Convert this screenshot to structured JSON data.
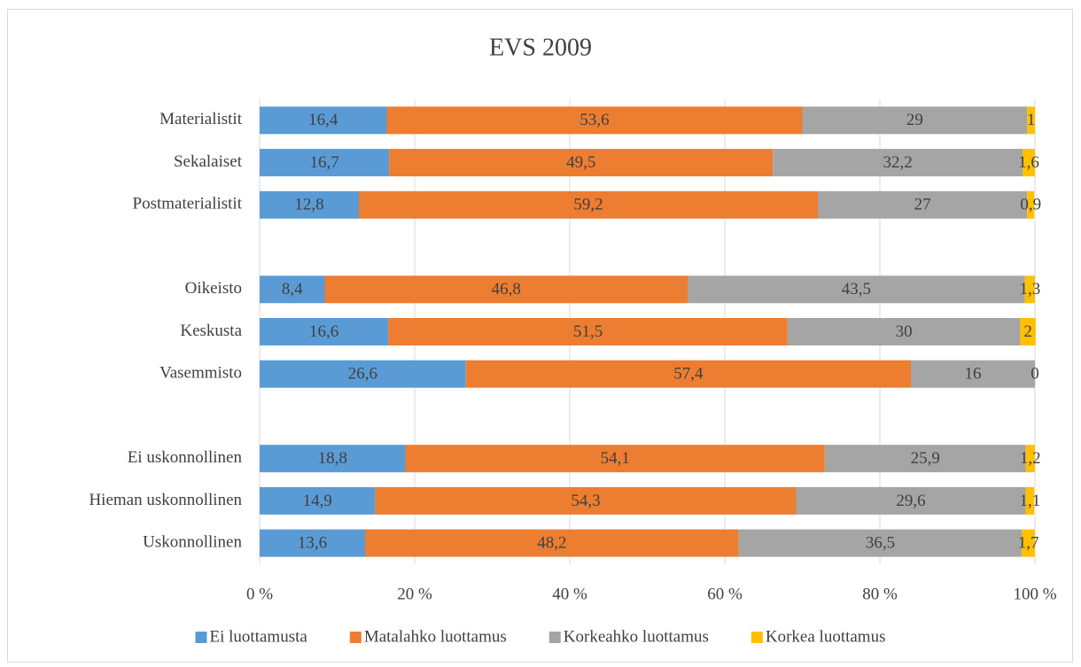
{
  "chart_data": {
    "type": "stacked-bar-horizontal",
    "title": "EVS 2009",
    "categories": [
      "Materialistit",
      "Sekalaiset",
      "Postmaterialistit",
      null,
      "Oikeisto",
      "Keskusta",
      "Vasemmisto",
      null,
      "Ei uskonnollinen",
      "Hieman uskonnollinen",
      "Uskonnollinen"
    ],
    "series": [
      {
        "name": "Ei luottamusta",
        "color": "#5b9bd5",
        "values": [
          16.4,
          16.7,
          12.8,
          null,
          8.4,
          16.6,
          26.6,
          null,
          18.8,
          14.9,
          13.6
        ],
        "value_labels": [
          "16,4",
          "16,7",
          "12,8",
          null,
          "8,4",
          "16,6",
          "26,6",
          null,
          "18,8",
          "14,9",
          "13,6"
        ]
      },
      {
        "name": "Matalahko luottamus",
        "color": "#ed7d31",
        "values": [
          53.6,
          49.5,
          59.2,
          null,
          46.8,
          51.5,
          57.4,
          null,
          54.1,
          54.3,
          48.2
        ],
        "value_labels": [
          "53,6",
          "49,5",
          "59,2",
          null,
          "46,8",
          "51,5",
          "57,4",
          null,
          "54,1",
          "54,3",
          "48,2"
        ]
      },
      {
        "name": "Korkeahko luottamus",
        "color": "#a5a5a5",
        "values": [
          29,
          32.2,
          27,
          null,
          43.5,
          30,
          16,
          null,
          25.9,
          29.6,
          36.5
        ],
        "value_labels": [
          "29",
          "32,2",
          "27",
          null,
          "43,5",
          "30",
          "16",
          null,
          "25,9",
          "29,6",
          "36,5"
        ]
      },
      {
        "name": "Korkea luottamus",
        "color": "#ffc000",
        "values": [
          1,
          1.6,
          0.9,
          null,
          1.3,
          2,
          0,
          null,
          1.2,
          1.1,
          1.7
        ],
        "value_labels": [
          "1",
          "1,6",
          "0,9",
          null,
          "1,3",
          "2",
          "0",
          null,
          "1,2",
          "1,1",
          "1,7"
        ]
      }
    ],
    "xlim": [
      0,
      100
    ],
    "xticks": [
      {
        "value": 0,
        "label": "0 %"
      },
      {
        "value": 20,
        "label": "20 %"
      },
      {
        "value": 40,
        "label": "40 %"
      },
      {
        "value": 60,
        "label": "60 %"
      },
      {
        "value": 80,
        "label": "80 %"
      },
      {
        "value": 100,
        "label": "100 %"
      }
    ],
    "grid": true,
    "legend": "bottom"
  }
}
